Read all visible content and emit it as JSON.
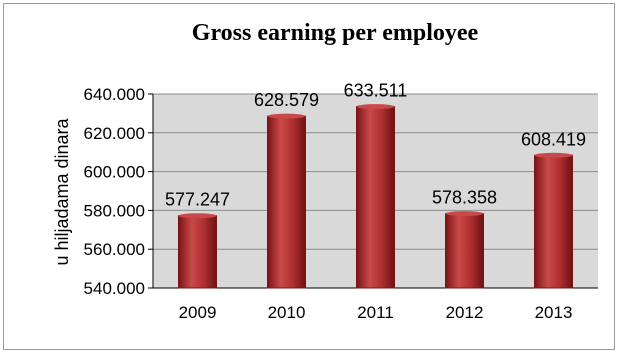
{
  "chart_data": {
    "type": "bar",
    "title": "Gross earning per employee",
    "xlabel": "",
    "ylabel": "u hiljadama dinara",
    "categories": [
      "2009",
      "2010",
      "2011",
      "2012",
      "2013"
    ],
    "values": [
      577.247,
      628.579,
      633.511,
      578.358,
      608.419
    ],
    "value_labels": [
      "577.247",
      "628.579",
      "633.511",
      "578.358",
      "608.419"
    ],
    "ylim": [
      540,
      640
    ],
    "yticks": [
      540,
      560,
      580,
      600,
      620,
      640
    ],
    "ytick_labels": [
      "540.000",
      "560.000",
      "580.000",
      "600.000",
      "620.000",
      "640.000"
    ],
    "grid": true,
    "legend": "none",
    "colors": {
      "bar": "#a8282b",
      "bar_light": "#c9494a",
      "bar_dark": "#7a1416",
      "plot_bg": "#d9d9d9",
      "grid": "#8c8c8c"
    }
  }
}
